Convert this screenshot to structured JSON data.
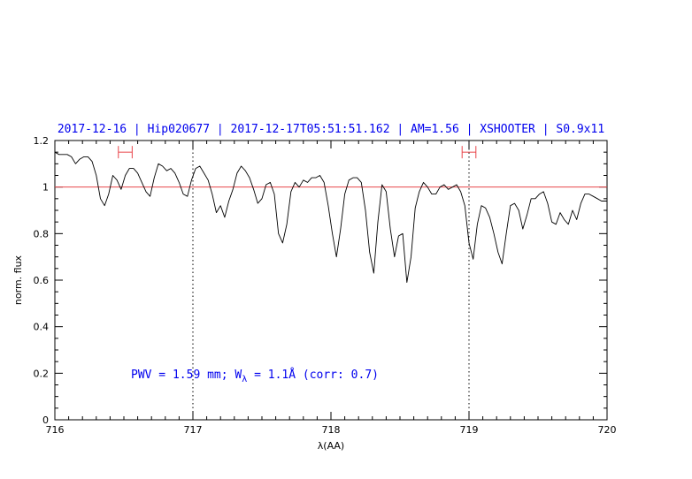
{
  "chart_data": {
    "type": "line",
    "title": "2017-12-16 | Hip020677 | 2017-12-17T05:51:51.162 | AM=1.56 | XSHOOTER | S0.9x11",
    "xlabel": "λ(AA)",
    "ylabel": "norm. flux",
    "xlim": [
      716,
      720
    ],
    "ylim": [
      0,
      1.2
    ],
    "x_ticks": [
      "716",
      "717",
      "718",
      "719",
      "720"
    ],
    "y_ticks": [
      "0",
      "0.2",
      "0.4",
      "0.6",
      "0.8",
      "1",
      "1.2"
    ],
    "annotation": {
      "prefix": "PWV = 1.59 mm; W",
      "subscript": "λ",
      "suffix": " = 1.1Å (corr: 0.7)"
    },
    "reference_line": {
      "y": 1.0,
      "color": "#e8454a"
    },
    "dotted_lines_x": [
      717,
      719
    ],
    "ranges": [
      {
        "from": 716.46,
        "to": 716.56,
        "y": 1.15,
        "color": "#e8454a"
      },
      {
        "from": 718.95,
        "to": 719.05,
        "y": 1.15,
        "color": "#e8454a"
      }
    ],
    "colors": {
      "title": "#0000ee",
      "annotation": "#0000ee",
      "spectrum": "#000000",
      "reference": "#e8454a"
    },
    "grid": false,
    "series": [
      {
        "x": [
          716.0,
          716.03,
          716.06,
          716.09,
          716.12,
          716.15,
          716.18,
          716.21,
          716.24,
          716.27,
          716.3,
          716.33,
          716.36,
          716.39,
          716.42,
          716.45,
          716.48,
          716.51,
          716.54,
          716.57,
          716.6,
          716.63,
          716.66,
          716.69,
          716.72,
          716.75,
          716.78,
          716.81,
          716.84,
          716.87,
          716.9,
          716.93,
          716.96,
          716.99,
          717.02,
          717.05,
          717.08,
          717.11,
          717.14,
          717.17,
          717.2,
          717.23,
          717.26,
          717.29,
          717.32,
          717.35,
          717.38,
          717.41,
          717.44,
          717.47,
          717.5,
          717.53,
          717.56,
          717.59,
          717.62,
          717.65,
          717.68,
          717.71,
          717.74,
          717.77,
          717.8,
          717.83,
          717.86,
          717.89,
          717.92,
          717.95,
          717.98,
          718.01,
          718.04,
          718.07,
          718.1,
          718.13,
          718.16,
          718.19,
          718.22,
          718.25,
          718.28,
          718.31,
          718.34,
          718.37,
          718.4,
          718.43,
          718.46,
          718.49,
          718.52,
          718.55,
          718.58,
          718.61,
          718.64,
          718.67,
          718.7,
          718.73,
          718.76,
          718.79,
          718.82,
          718.85,
          718.88,
          718.91,
          718.94,
          718.97,
          719.0,
          719.03,
          719.06,
          719.09,
          719.12,
          719.15,
          719.18,
          719.21,
          719.24,
          719.27,
          719.3,
          719.33,
          719.36,
          719.39,
          719.42,
          719.45,
          719.48,
          719.51,
          719.54,
          719.57,
          719.6,
          719.63,
          719.66,
          719.69,
          719.72,
          719.75,
          719.78,
          719.81,
          719.84,
          719.87,
          719.9,
          719.93,
          719.96,
          720.0
        ],
        "y": [
          1.15,
          1.14,
          1.14,
          1.14,
          1.13,
          1.1,
          1.12,
          1.13,
          1.13,
          1.11,
          1.05,
          0.95,
          0.92,
          0.97,
          1.05,
          1.03,
          0.99,
          1.05,
          1.08,
          1.08,
          1.06,
          1.02,
          0.98,
          0.96,
          1.04,
          1.1,
          1.09,
          1.07,
          1.08,
          1.06,
          1.02,
          0.97,
          0.96,
          1.03,
          1.08,
          1.09,
          1.06,
          1.03,
          0.97,
          0.89,
          0.92,
          0.87,
          0.94,
          0.99,
          1.06,
          1.09,
          1.07,
          1.04,
          0.99,
          0.93,
          0.95,
          1.01,
          1.02,
          0.97,
          0.8,
          0.76,
          0.84,
          0.98,
          1.02,
          1.0,
          1.03,
          1.02,
          1.04,
          1.04,
          1.05,
          1.02,
          0.92,
          0.8,
          0.7,
          0.82,
          0.97,
          1.03,
          1.04,
          1.04,
          1.02,
          0.9,
          0.72,
          0.63,
          0.85,
          1.01,
          0.98,
          0.82,
          0.7,
          0.79,
          0.8,
          0.59,
          0.7,
          0.91,
          0.98,
          1.02,
          1.0,
          0.97,
          0.97,
          1.0,
          1.01,
          0.99,
          1.0,
          1.01,
          0.98,
          0.92,
          0.76,
          0.69,
          0.84,
          0.92,
          0.91,
          0.87,
          0.8,
          0.72,
          0.67,
          0.8,
          0.92,
          0.93,
          0.9,
          0.82,
          0.88,
          0.95,
          0.95,
          0.97,
          0.98,
          0.93,
          0.85,
          0.84,
          0.89,
          0.86,
          0.84,
          0.9,
          0.86,
          0.93,
          0.97,
          0.97,
          0.96,
          0.95,
          0.94,
          0.94
        ]
      }
    ]
  }
}
